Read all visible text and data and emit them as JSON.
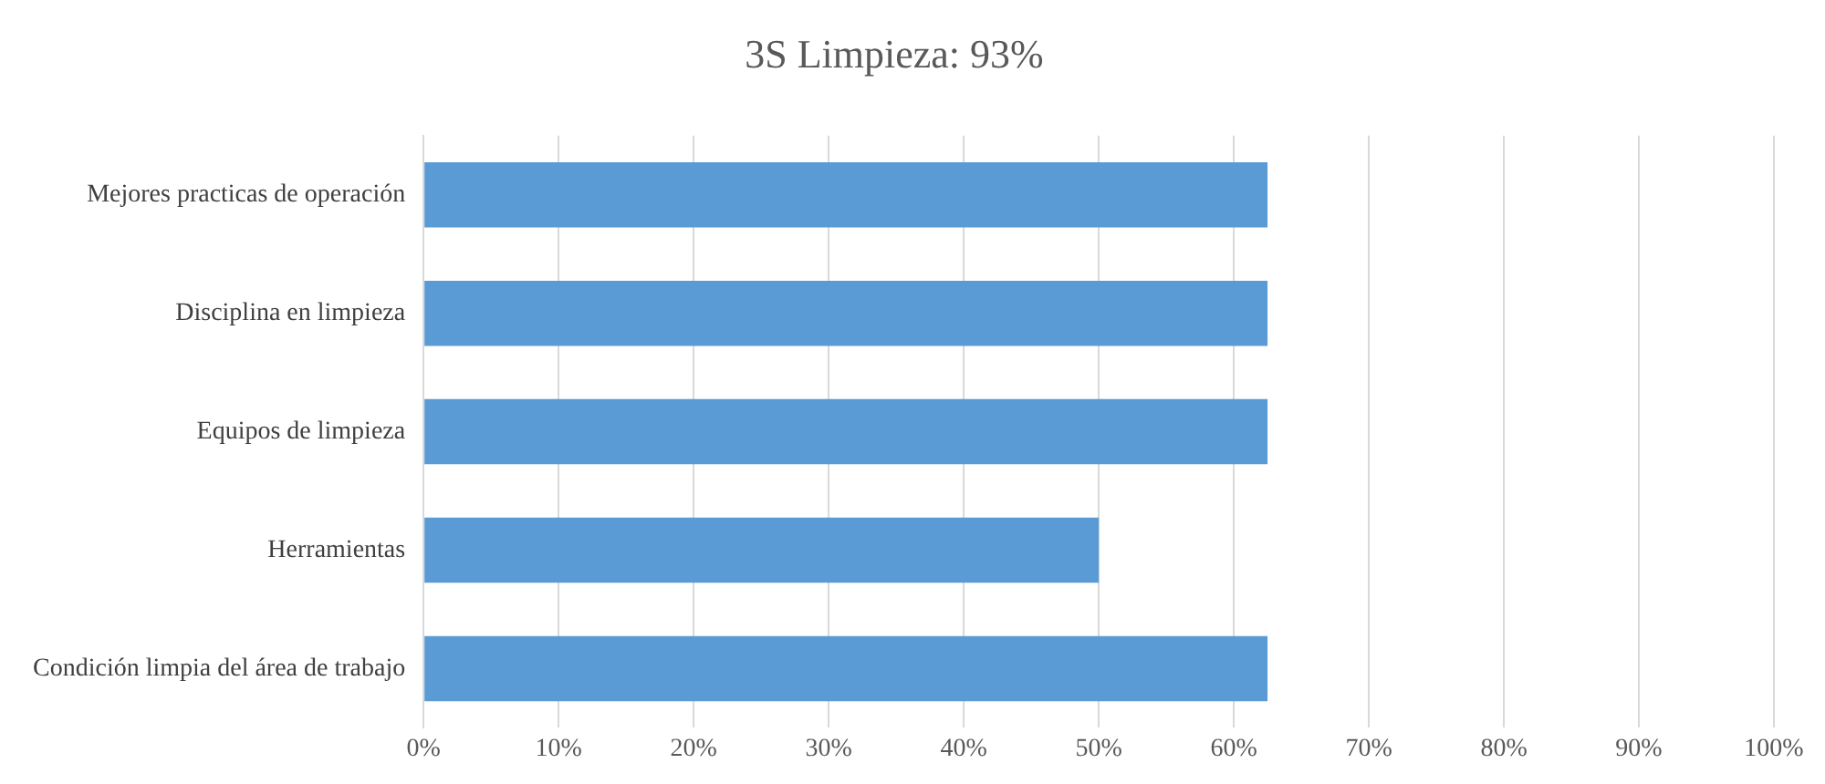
{
  "chart_data": {
    "type": "bar",
    "orientation": "horizontal",
    "title": "3S Limpieza: 93%",
    "categories": [
      "Mejores practicas de operación",
      "Disciplina en limpieza",
      "Equipos de limpieza",
      "Herramientas",
      "Condición limpia del área de trabajo"
    ],
    "values": [
      62.5,
      62.5,
      62.5,
      50,
      62.5
    ],
    "color": "#5b9bd5",
    "xlim": [
      0,
      100
    ],
    "xticks": [
      {
        "value": 0,
        "label": "0%"
      },
      {
        "value": 10,
        "label": "10%"
      },
      {
        "value": 20,
        "label": "20%"
      },
      {
        "value": 30,
        "label": "30%"
      },
      {
        "value": 40,
        "label": "40%"
      },
      {
        "value": 50,
        "label": "50%"
      },
      {
        "value": 60,
        "label": "60%"
      },
      {
        "value": 70,
        "label": "70%"
      },
      {
        "value": 80,
        "label": "80%"
      },
      {
        "value": 90,
        "label": "90%"
      },
      {
        "value": 100,
        "label": "100%"
      }
    ],
    "grid": "x",
    "legend": false
  }
}
